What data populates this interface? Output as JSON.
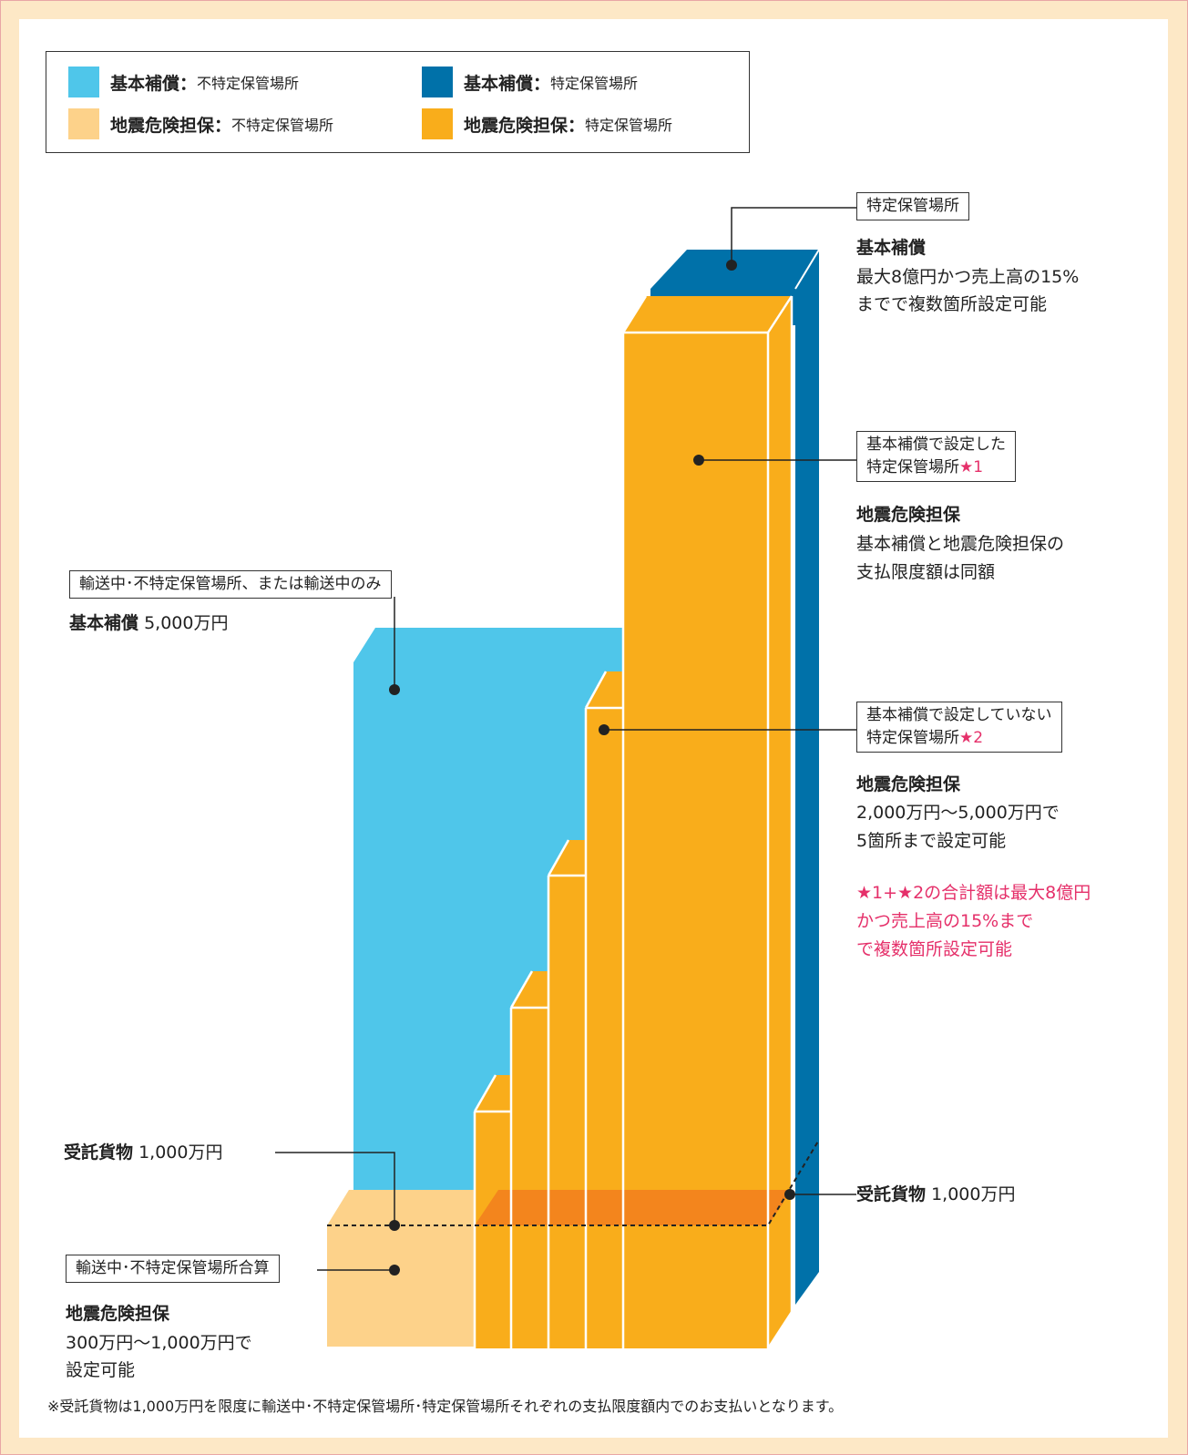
{
  "colors": {
    "basic_nonspecific": "#4fc6ea",
    "basic_specific": "#0071a9",
    "quake_nonspecific": "#fdd28a",
    "quake_specific": "#f9ad1b",
    "overlap": "#f2811d",
    "note_pink": "#e5306a",
    "frame": "#fde8c6"
  },
  "legend": [
    {
      "strong": "基本補償：",
      "light": "不特定保管場所"
    },
    {
      "strong": "基本補償：",
      "light": "特定保管場所"
    },
    {
      "strong": "地震危険担保：",
      "light": "不特定保管場所"
    },
    {
      "strong": "地震危険担保：",
      "light": "特定保管場所"
    }
  ],
  "labels": {
    "specific_box": "特定保管場所",
    "specific_basic_title": "基本補償",
    "specific_basic_line1": "最大8億円かつ売上高の15%",
    "specific_basic_line2": "までで複数箇所設定可能",
    "set_box_line1": "基本補償で設定した",
    "set_box_line2": "特定保管場所",
    "set_box_star": "★1",
    "set_quake_title": "地震危険担保",
    "set_quake_line1": "基本補償と地震危険担保の",
    "set_quake_line2": "支払限度額は同額",
    "transit_box": "輸送中･不特定保管場所、または輸送中のみ",
    "transit_basic_title": "基本補償",
    "transit_basic_value": "5,000万円",
    "unset_box_line1": "基本補償で設定していない",
    "unset_box_line2": "特定保管場所",
    "unset_box_star": "★2",
    "unset_quake_title": "地震危険担保",
    "unset_quake_line1": "2,000万円～5,000万円で",
    "unset_quake_line2": "5箇所まで設定可能",
    "note_line1": "★1+★2の合計額は最大8億円",
    "note_line2": "かつ売上高の15%まで",
    "note_line3": "で複数箇所設定可能",
    "cargo_left_title": "受託貨物",
    "cargo_left_value": "1,000万円",
    "cargo_right_title": "受託貨物",
    "cargo_right_value": "1,000万円",
    "combined_box": "輸送中･不特定保管場所合算",
    "combined_quake_title": "地震危険担保",
    "combined_quake_line1": "300万円～1,000万円で",
    "combined_quake_line2": "設定可能"
  },
  "footnote": "※受託貨物は1,000万円を限度に輸送中･不特定保管場所･特定保管場所それぞれの支払限度額内でのお支払いとなります。"
}
